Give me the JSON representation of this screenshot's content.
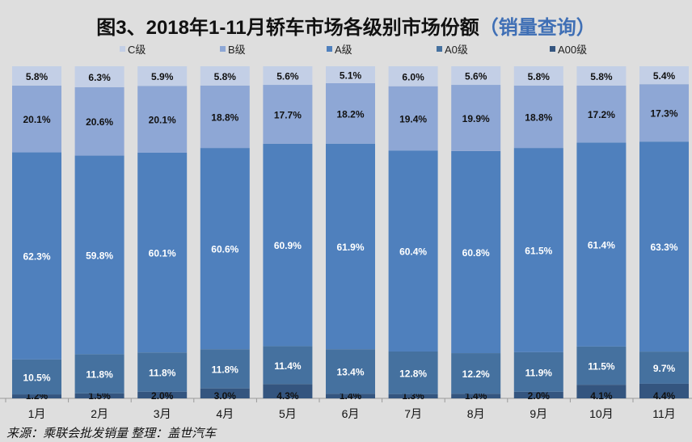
{
  "chart_data": {
    "type": "bar",
    "stacked": true,
    "title": "图3、2018年1-11月轿车市场各级别市场份额",
    "title_suffix": "（销量查询）",
    "categories": [
      "1月",
      "2月",
      "3月",
      "4月",
      "5月",
      "6月",
      "7月",
      "8月",
      "9月",
      "10月",
      "11月"
    ],
    "series": [
      {
        "name": "A00级",
        "color": "#34557f",
        "values": [
          1.2,
          1.5,
          2.0,
          3.0,
          4.3,
          1.4,
          1.3,
          1.4,
          2.0,
          4.1,
          4.4
        ]
      },
      {
        "name": "A0级",
        "color": "#45719f",
        "values": [
          10.5,
          11.8,
          11.8,
          11.8,
          11.4,
          13.4,
          12.8,
          12.2,
          11.9,
          11.5,
          9.7
        ]
      },
      {
        "name": "A级",
        "color": "#4f80bd",
        "values": [
          62.3,
          59.8,
          60.1,
          60.6,
          60.9,
          61.9,
          60.4,
          60.8,
          61.5,
          61.4,
          63.3
        ]
      },
      {
        "name": "B级",
        "color": "#8ea7d5",
        "values": [
          20.1,
          20.6,
          20.1,
          18.8,
          17.7,
          18.2,
          19.4,
          19.9,
          18.8,
          17.2,
          17.3
        ]
      },
      {
        "name": "C级",
        "color": "#c3cfe6",
        "values": [
          5.8,
          6.3,
          5.9,
          5.8,
          5.6,
          5.1,
          6.0,
          5.6,
          5.8,
          5.8,
          5.4
        ]
      }
    ],
    "legend_order": [
      "C级",
      "B级",
      "A级",
      "A0级",
      "A00级"
    ],
    "legend_position": "top",
    "ylim": [
      0,
      100
    ],
    "grid": false,
    "source": "来源：乘联会批发销量 整理：盖世汽车"
  }
}
